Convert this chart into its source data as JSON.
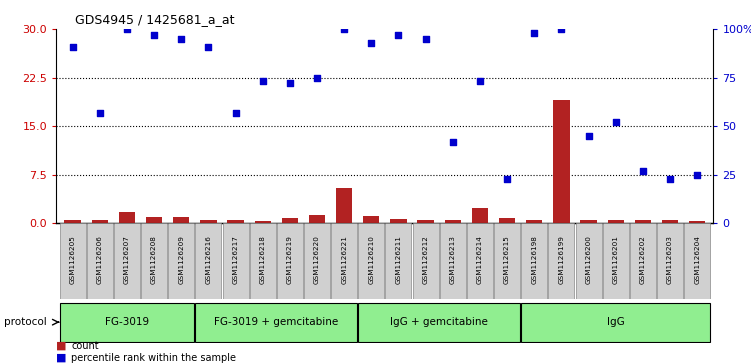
{
  "title": "GDS4945 / 1425681_a_at",
  "samples": [
    "GSM1126205",
    "GSM1126206",
    "GSM1126207",
    "GSM1126208",
    "GSM1126209",
    "GSM1126216",
    "GSM1126217",
    "GSM1126218",
    "GSM1126219",
    "GSM1126220",
    "GSM1126221",
    "GSM1126210",
    "GSM1126211",
    "GSM1126212",
    "GSM1126213",
    "GSM1126214",
    "GSM1126215",
    "GSM1126198",
    "GSM1126199",
    "GSM1126200",
    "GSM1126201",
    "GSM1126202",
    "GSM1126203",
    "GSM1126204"
  ],
  "counts": [
    0.5,
    0.5,
    1.7,
    0.9,
    0.9,
    0.5,
    0.5,
    0.3,
    0.8,
    1.3,
    5.5,
    1.1,
    0.7,
    0.5,
    0.5,
    2.4,
    0.8,
    0.5,
    19.0,
    0.5,
    0.5,
    0.5,
    0.5,
    0.3
  ],
  "percentiles": [
    91,
    57,
    100,
    97,
    95,
    91,
    57,
    73,
    72,
    75,
    100,
    93,
    97,
    95,
    42,
    73,
    23,
    98,
    100,
    45,
    52,
    27,
    23,
    25
  ],
  "protocol_labels": [
    "FG-3019",
    "FG-3019 + gemcitabine",
    "IgG + gemcitabine",
    "IgG"
  ],
  "protocol_ranges": [
    [
      0,
      5
    ],
    [
      5,
      11
    ],
    [
      11,
      17
    ],
    [
      17,
      24
    ]
  ],
  "protocol_color": "#90EE90",
  "ylim_left": [
    0,
    30
  ],
  "ylim_right": [
    0,
    100
  ],
  "yticks_left": [
    0,
    7.5,
    15,
    22.5,
    30
  ],
  "yticks_right": [
    0,
    25,
    50,
    75,
    100
  ],
  "ytick_labels_right": [
    "0",
    "25",
    "50",
    "75",
    "100%"
  ],
  "bar_color": "#B22222",
  "scatter_color": "#0000CD",
  "grid_color": "black",
  "left_tick_color": "#CC0000",
  "right_tick_color": "#0000CD",
  "sample_box_color": "#D0D0D0",
  "fig_width": 7.51,
  "fig_height": 3.63,
  "dpi": 100
}
